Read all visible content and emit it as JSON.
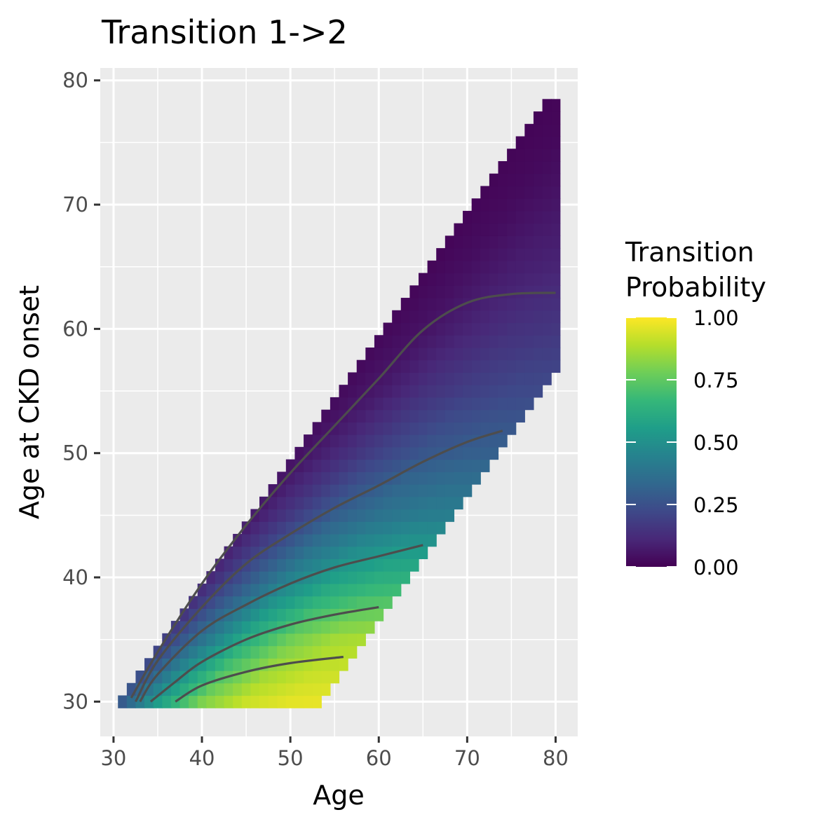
{
  "chart_data": {
    "type": "heatmap",
    "title": "Transition 1->2",
    "xlabel": "Age",
    "ylabel": "Age at CKD onset",
    "xlim": [
      28.5,
      82.5
    ],
    "ylim": [
      27.2,
      81
    ],
    "x_ticks": [
      30,
      40,
      50,
      60,
      70,
      80
    ],
    "y_ticks": [
      30,
      40,
      50,
      60,
      70,
      80
    ],
    "grid": true,
    "region": {
      "age_min": 31,
      "age_max": 80,
      "onset_min": 30,
      "onset_max_at_age_max": 78,
      "min_onset_at_age_max": 57,
      "diagonal_offset": 1,
      "lower_edge": [
        [
          31,
          30
        ],
        [
          53,
          30
        ],
        [
          65,
          42
        ],
        [
          80,
          57
        ]
      ]
    },
    "probability_grid": {
      "onset_points": [
        30,
        35,
        40,
        45,
        50,
        55,
        60,
        65,
        70,
        78
      ],
      "duration_points": [
        0,
        5,
        10,
        15,
        20,
        25,
        30
      ],
      "values": [
        [
          0.22,
          0.55,
          0.8,
          0.92,
          0.96,
          0.97,
          0.97
        ],
        [
          0.14,
          0.38,
          0.62,
          0.78,
          0.86,
          0.88,
          0.88
        ],
        [
          0.08,
          0.26,
          0.44,
          0.56,
          0.62,
          0.64,
          0.64
        ],
        [
          0.05,
          0.17,
          0.3,
          0.38,
          0.42,
          0.43,
          0.43
        ],
        [
          0.03,
          0.11,
          0.2,
          0.27,
          0.3,
          0.31,
          0.31
        ],
        [
          0.02,
          0.07,
          0.14,
          0.19,
          0.22,
          0.23,
          0.23
        ],
        [
          0.015,
          0.05,
          0.1,
          0.14,
          0.16,
          0.17,
          0.17
        ],
        [
          0.01,
          0.04,
          0.08,
          0.1,
          0.12,
          0.12,
          0.12
        ],
        [
          0.01,
          0.03,
          0.06,
          0.08,
          0.09,
          0.09,
          0.09
        ],
        [
          0.01,
          0.02,
          0.04,
          0.05,
          0.06,
          0.06,
          0.06
        ]
      ]
    },
    "contour_lines": [
      {
        "level": 0.75,
        "points": [
          [
            37,
            30
          ],
          [
            40,
            31.3
          ],
          [
            45,
            32.4
          ],
          [
            50,
            33.1
          ],
          [
            56,
            33.6
          ]
        ]
      },
      {
        "level": 0.5,
        "points": [
          [
            34.2,
            30
          ],
          [
            37,
            31.6
          ],
          [
            40,
            33.2
          ],
          [
            45,
            35
          ],
          [
            50,
            36.2
          ],
          [
            55,
            37
          ],
          [
            60,
            37.6
          ]
        ]
      },
      {
        "level": 0.25,
        "points": [
          [
            33,
            30
          ],
          [
            35,
            32.2
          ],
          [
            40,
            35.7
          ],
          [
            45,
            37.8
          ],
          [
            50,
            39.5
          ],
          [
            55,
            40.8
          ],
          [
            60,
            41.7
          ],
          [
            65,
            42.6
          ]
        ]
      },
      {
        "level": 0.1,
        "points": [
          [
            32.5,
            30
          ],
          [
            35,
            33.3
          ],
          [
            40,
            37.6
          ],
          [
            45,
            41.1
          ],
          [
            50,
            43.5
          ],
          [
            55,
            45.6
          ],
          [
            60,
            47.4
          ],
          [
            65,
            49.3
          ],
          [
            70,
            50.9
          ],
          [
            74,
            51.8
          ]
        ]
      },
      {
        "level": 0.05,
        "points": [
          [
            32,
            30.3
          ],
          [
            35,
            34
          ],
          [
            40,
            39.5
          ],
          [
            45,
            44.2
          ],
          [
            50,
            48.4
          ],
          [
            55,
            52.2
          ],
          [
            60,
            56
          ],
          [
            65,
            59.9
          ],
          [
            70,
            62.1
          ],
          [
            75,
            62.8
          ],
          [
            80,
            62.9
          ]
        ]
      }
    ],
    "contour_color": "#4d4d4d",
    "legend": {
      "title_lines": [
        "Transition",
        "Probability"
      ],
      "labels": [
        "1.00",
        "0.75",
        "0.50",
        "0.25",
        "0.00"
      ],
      "values": [
        1.0,
        0.75,
        0.5,
        0.25,
        0.0
      ],
      "range": [
        0,
        1
      ],
      "placement": "right",
      "colormap": [
        "#440154",
        "#482878",
        "#3e4989",
        "#31688e",
        "#26828e",
        "#1f9e89",
        "#35b779",
        "#6ece58",
        "#b5de2b",
        "#fde725"
      ]
    },
    "panel_background": "#ebebeb",
    "grid_color": "#ffffff"
  }
}
